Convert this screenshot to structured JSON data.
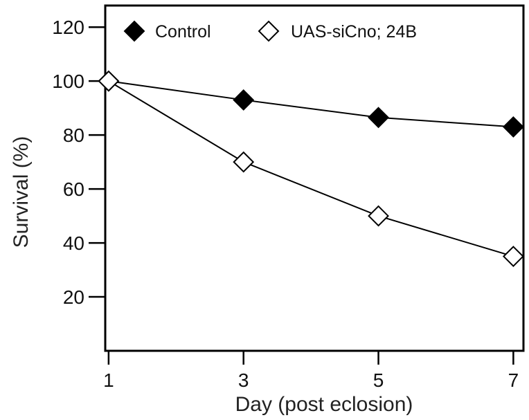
{
  "chart_data": {
    "type": "line",
    "title": "",
    "xlabel": "Day (post eclosion)",
    "ylabel": "Survival (%)",
    "x": [
      1,
      3,
      5,
      7
    ],
    "xticks": [
      "1",
      "3",
      "5",
      "7"
    ],
    "xlim": [
      0.95,
      7.15
    ],
    "yticks": [
      "20",
      "40",
      "60",
      "80",
      "100",
      "120"
    ],
    "ylim": [
      0,
      128
    ],
    "grid": false,
    "legend_position": "top",
    "series": [
      {
        "name": "Control",
        "marker": "filled-diamond",
        "color": "#000000",
        "values": [
          100,
          93,
          86.5,
          83
        ]
      },
      {
        "name": "UAS-siCno; 24B",
        "marker": "open-diamond",
        "color": "#000000",
        "values": [
          100,
          70,
          50,
          35
        ]
      }
    ]
  }
}
